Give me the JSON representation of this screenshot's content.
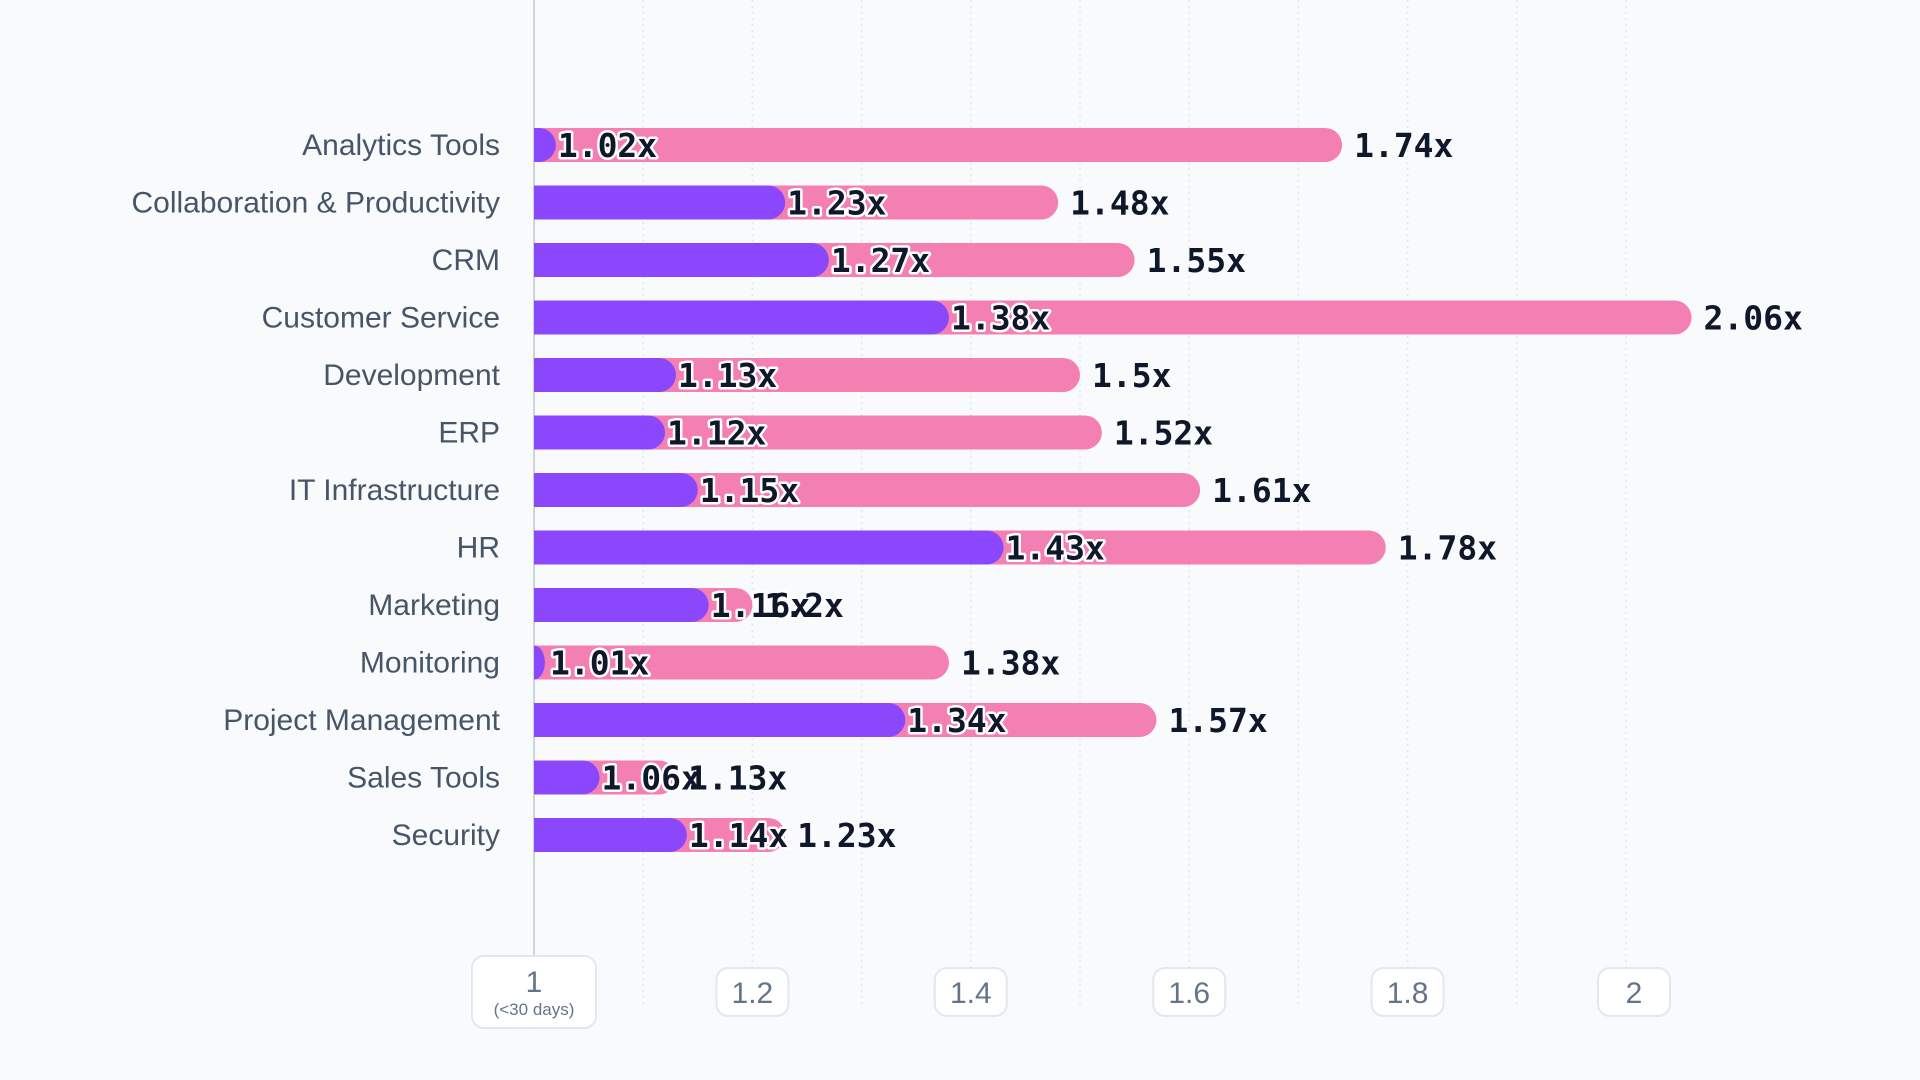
{
  "chart_data": {
    "type": "bar",
    "orientation": "horizontal",
    "categories": [
      "Analytics Tools",
      "Collaboration & Productivity",
      "CRM",
      "Customer Service",
      "Development",
      "ERP",
      "IT Infrastructure",
      "HR",
      "Marketing",
      "Monitoring",
      "Project Management",
      "Sales Tools",
      "Security"
    ],
    "series": [
      {
        "values": [
          1.02,
          1.23,
          1.27,
          1.38,
          1.13,
          1.12,
          1.15,
          1.43,
          1.16,
          1.01,
          1.34,
          1.06,
          1.14
        ],
        "labels": [
          "1.02x",
          "1.23x",
          "1.27x",
          "1.38x",
          "1.13x",
          "1.12x",
          "1.15x",
          "1.43x",
          "1.16x",
          "1.01x",
          "1.34x",
          "1.06x",
          "1.14x"
        ],
        "color": "#8b47fb"
      },
      {
        "values": [
          1.74,
          1.48,
          1.55,
          2.06,
          1.5,
          1.52,
          1.61,
          1.78,
          1.2,
          1.38,
          1.57,
          1.13,
          1.23
        ],
        "labels": [
          "1.74x",
          "1.48x",
          "1.55x",
          "2.06x",
          "1.5x",
          "1.52x",
          "1.61x",
          "1.78x",
          "1.2x",
          "1.38x",
          "1.57x",
          "1.13x",
          "1.23x"
        ],
        "color": "#f47fb3"
      }
    ],
    "xlim": [
      1,
      2.06
    ],
    "ticks": [
      {
        "label": "1",
        "sub": "(<30 days)",
        "value": 1
      },
      {
        "label": "1.2",
        "value": 1.2
      },
      {
        "label": "1.4",
        "value": 1.4
      },
      {
        "label": "1.6",
        "value": 1.6
      },
      {
        "label": "1.8",
        "value": 1.8
      },
      {
        "label": "2",
        "value": 2
      }
    ],
    "grid": true
  }
}
